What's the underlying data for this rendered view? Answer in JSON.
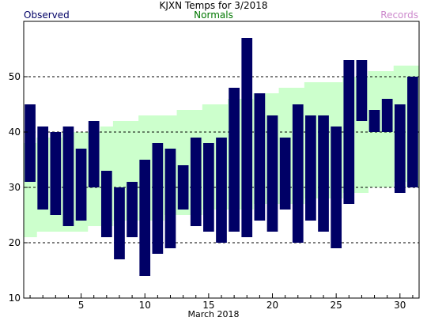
{
  "chart_data": {
    "type": "bar",
    "title": "KJXN Temps for 3/2018",
    "legend": {
      "observed": "Observed",
      "normals": "Normals",
      "records": "Records"
    },
    "xlabel": "March 2018",
    "ylim": [
      10,
      60
    ],
    "xlim": [
      0.5,
      31.5
    ],
    "y_ticks": [
      10,
      20,
      30,
      40,
      50
    ],
    "x_ticks": [
      5,
      10,
      15,
      20,
      25,
      30
    ],
    "grid_lines_y": [
      20,
      30,
      40,
      50
    ],
    "days": [
      1,
      2,
      3,
      4,
      5,
      6,
      7,
      8,
      9,
      10,
      11,
      12,
      13,
      14,
      15,
      16,
      17,
      18,
      19,
      20,
      21,
      22,
      23,
      24,
      25,
      26,
      27,
      28,
      29,
      30,
      31
    ],
    "observed_high": [
      45,
      41,
      40,
      41,
      37,
      42,
      33,
      30,
      31,
      35,
      38,
      37,
      34,
      39,
      38,
      39,
      48,
      57,
      47,
      43,
      39,
      45,
      43,
      43,
      41,
      53,
      53,
      44,
      46,
      45,
      50
    ],
    "observed_low": [
      31,
      26,
      25,
      23,
      24,
      30,
      21,
      17,
      21,
      14,
      18,
      19,
      26,
      23,
      22,
      20,
      22,
      21,
      24,
      22,
      26,
      20,
      24,
      22,
      19,
      27,
      42,
      40,
      40,
      29,
      30
    ],
    "normal_high": [
      38,
      39,
      39,
      40,
      40,
      40,
      41,
      42,
      42,
      43,
      43,
      43,
      44,
      44,
      45,
      45,
      46,
      46,
      47,
      47,
      48,
      48,
      49,
      49,
      49,
      50,
      50,
      51,
      51,
      52,
      52
    ],
    "normal_low": [
      21,
      22,
      22,
      22,
      22,
      23,
      23,
      24,
      24,
      24,
      24,
      25,
      25,
      25,
      26,
      26,
      26,
      26,
      27,
      27,
      27,
      27,
      28,
      28,
      28,
      29,
      29,
      30,
      30,
      31,
      30
    ],
    "colors": {
      "observed": "#000066",
      "normals": "#ccffcc",
      "normals_text": "#007700",
      "records_text": "#cc88cc",
      "grid": "#000000"
    }
  }
}
